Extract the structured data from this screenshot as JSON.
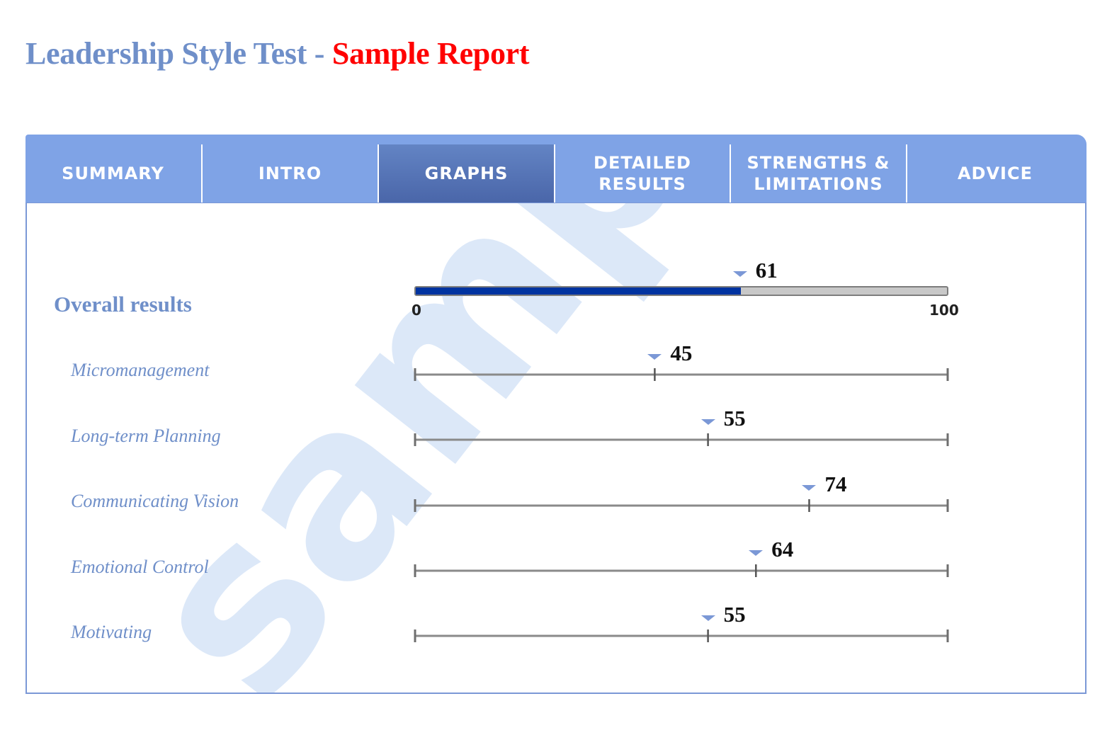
{
  "header": {
    "title_main": "Leadership Style Test",
    "title_sep": "-",
    "title_report": "Sample Report"
  },
  "tabs": [
    {
      "label": "SUMMARY",
      "active": false
    },
    {
      "label": "INTRO",
      "active": false
    },
    {
      "label": "GRAPHS",
      "active": true
    },
    {
      "label": "DETAILED RESULTS",
      "active": false
    },
    {
      "label": "STRENGTHS & LIMITATIONS",
      "active": false
    },
    {
      "label": "ADVICE",
      "active": false
    }
  ],
  "watermark": {
    "text": "sample",
    "color": "#dce8f8"
  },
  "overall": {
    "label": "Overall results",
    "score": 61,
    "min_label": "0",
    "max_label": "100",
    "fill_color": "#0033a0"
  },
  "scales": [
    {
      "label": "Micromanagement",
      "score": 45
    },
    {
      "label": "Long-term Planning",
      "score": 55
    },
    {
      "label": "Communicating Vision",
      "score": 74
    },
    {
      "label": "Emotional Control",
      "score": 64
    },
    {
      "label": "Motivating",
      "score": 55
    }
  ],
  "colors": {
    "accent": "#6f8fc9",
    "tab_bg": "#7fa3e6",
    "tab_active": "#4a66a9",
    "report_red": "#ff0000"
  }
}
